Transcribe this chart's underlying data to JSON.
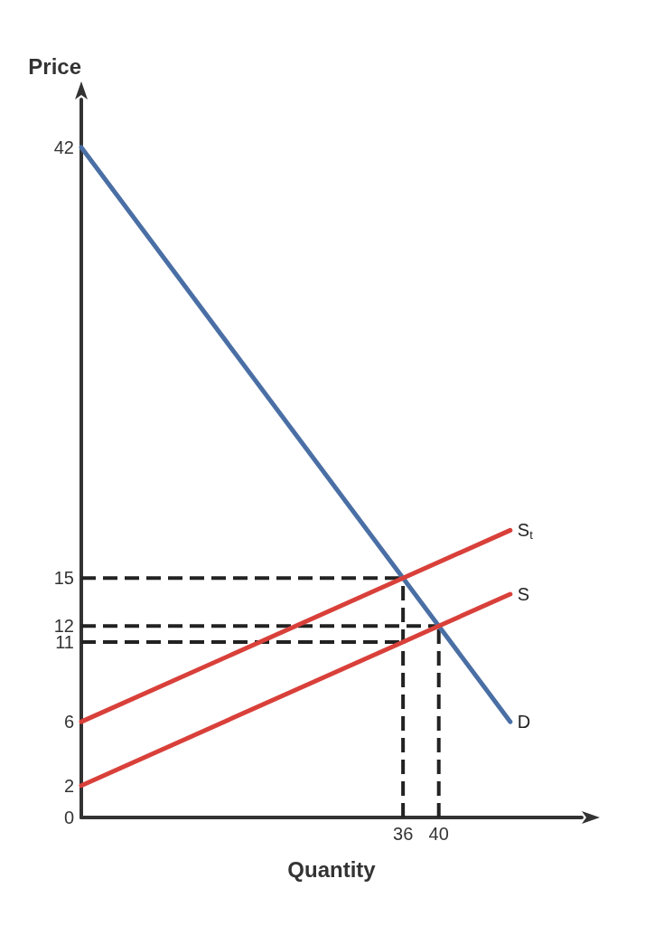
{
  "chart_data": {
    "type": "line",
    "xlabel": "Quantity",
    "ylabel": "Price",
    "xlim": [
      0,
      56
    ],
    "xticks": [
      36,
      40
    ],
    "ylim": [
      0,
      45
    ],
    "yticks": [
      0,
      2,
      6,
      11,
      12,
      15,
      42
    ],
    "grid": false,
    "legend": false,
    "marker": "none",
    "line_style": "solid",
    "series": [
      {
        "name": "D",
        "color": "#4a6fa5",
        "x": [
          0,
          36,
          40,
          48
        ],
        "values": [
          42,
          15,
          12,
          6
        ]
      },
      {
        "name": "S",
        "color": "#d9403a",
        "x": [
          0,
          36,
          40,
          48
        ],
        "values": [
          2,
          11,
          12,
          14
        ]
      },
      {
        "name": "S$_{t}$",
        "color": "#d9403a",
        "x": [
          0,
          36,
          48
        ],
        "values": [
          6,
          15,
          18
        ]
      },
      {
        "color": "#222222",
        "line_style": "dashed",
        "x": [
          0,
          36
        ],
        "values": [
          15,
          15
        ]
      },
      {
        "color": "#222222",
        "line_style": "dashed",
        "x": [
          0,
          40
        ],
        "values": [
          12,
          12
        ]
      },
      {
        "color": "#222222",
        "line_style": "dashed",
        "x": [
          0,
          36
        ],
        "values": [
          11,
          11
        ]
      },
      {
        "color": "#222222",
        "line_style": "dashed",
        "x": [
          36,
          36
        ],
        "values": [
          0,
          15
        ]
      },
      {
        "color": "#222222",
        "line_style": "dashed",
        "x": [
          40,
          40
        ],
        "values": [
          0,
          12
        ]
      }
    ]
  }
}
